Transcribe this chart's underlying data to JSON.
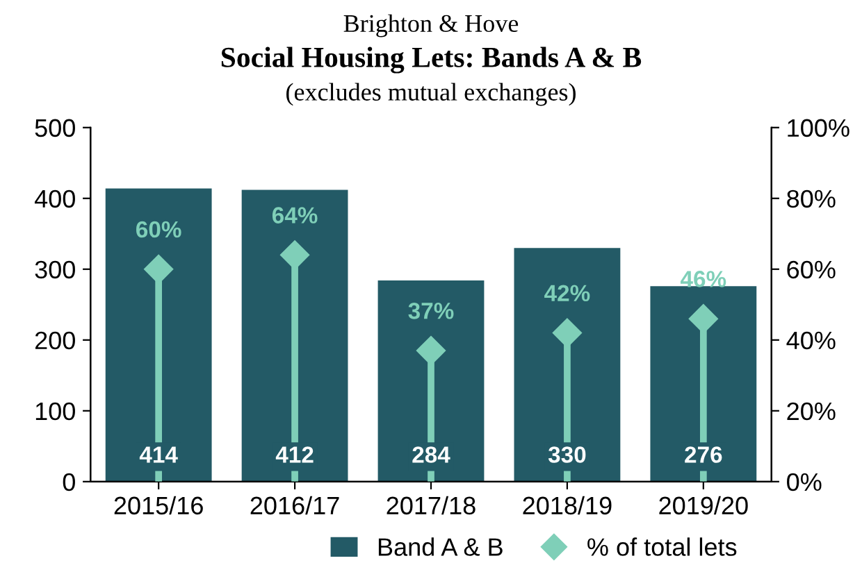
{
  "chart_data": {
    "type": "bar",
    "title": "Social Housing Lets: Bands A & B",
    "subtitle": "(excludes mutual exchanges)",
    "annotations": [
      "Brighton & Hove"
    ],
    "categories": [
      "2015/16",
      "2016/17",
      "2017/18",
      "2018/19",
      "2019/20"
    ],
    "series": [
      {
        "name": "Band A & B",
        "color": "#235a66",
        "values": [
          414,
          412,
          284,
          330,
          276
        ],
        "value_labels": [
          "414",
          "412",
          "284",
          "330",
          "276"
        ]
      },
      {
        "name": "% of total lets",
        "type": "lollipop",
        "axis": "y2",
        "marker": "diamond",
        "color": "#7fcfb8",
        "values": [
          60,
          64,
          37,
          42,
          46
        ],
        "value_labels": [
          "60%",
          "64%",
          "37%",
          "42%",
          "46%"
        ]
      }
    ],
    "ylim": [
      0,
      500
    ],
    "yticks": [
      0,
      100,
      200,
      300,
      400,
      500
    ],
    "y2lim": [
      0,
      100
    ],
    "y2ticks": [
      {
        "value": 0,
        "label": "0%"
      },
      {
        "value": 20,
        "label": "20%"
      },
      {
        "value": 40,
        "label": "40%"
      },
      {
        "value": 60,
        "label": "60%"
      },
      {
        "value": 80,
        "label": "80%"
      },
      {
        "value": 100,
        "label": "100%"
      }
    ],
    "grid": false,
    "legend": "bottom"
  }
}
